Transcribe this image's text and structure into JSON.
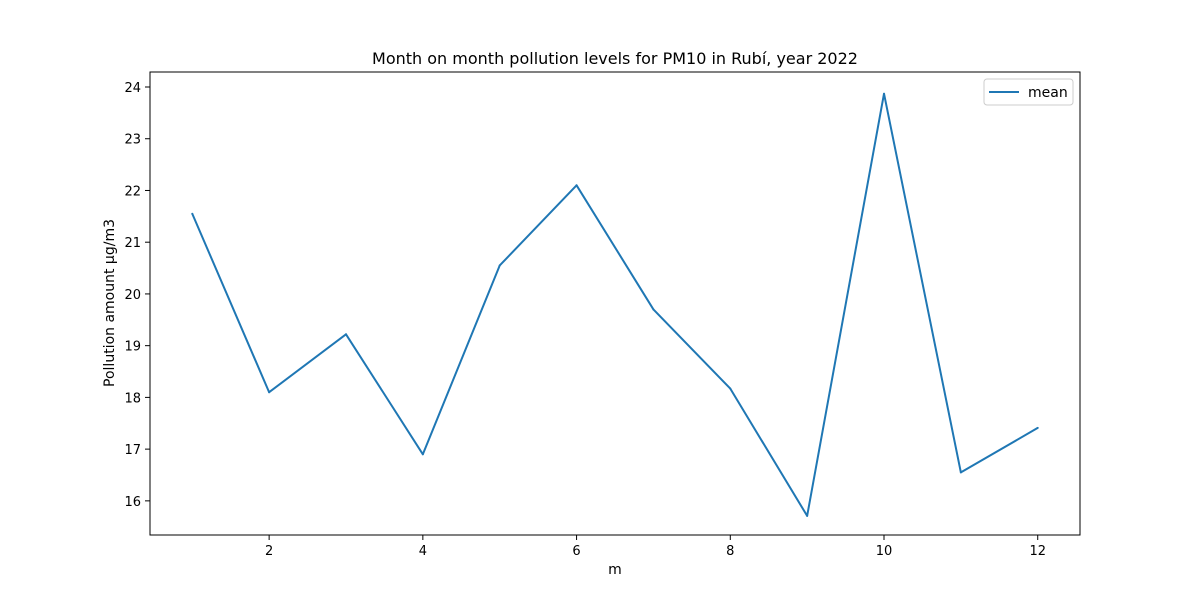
{
  "chart_data": {
    "type": "line",
    "title": "Month on month pollution levels for PM10 in Rubí, year 2022",
    "xlabel": "m",
    "ylabel": "Pollution amount µg/m3",
    "x": [
      1,
      2,
      3,
      4,
      5,
      6,
      7,
      8,
      9,
      10,
      11,
      12
    ],
    "series": [
      {
        "name": "mean",
        "color": "#1f77b4",
        "values": [
          21.55,
          18.1,
          19.22,
          16.9,
          20.55,
          22.1,
          19.7,
          18.17,
          15.71,
          23.87,
          16.55,
          17.41
        ]
      }
    ],
    "xlim": [
      0.45,
      12.55
    ],
    "ylim": [
      15.34,
      24.29
    ],
    "xticks": [
      2,
      4,
      6,
      8,
      10,
      12
    ],
    "yticks": [
      16,
      17,
      18,
      19,
      20,
      21,
      22,
      23,
      24
    ],
    "grid": false,
    "legend_position": "top-right"
  }
}
